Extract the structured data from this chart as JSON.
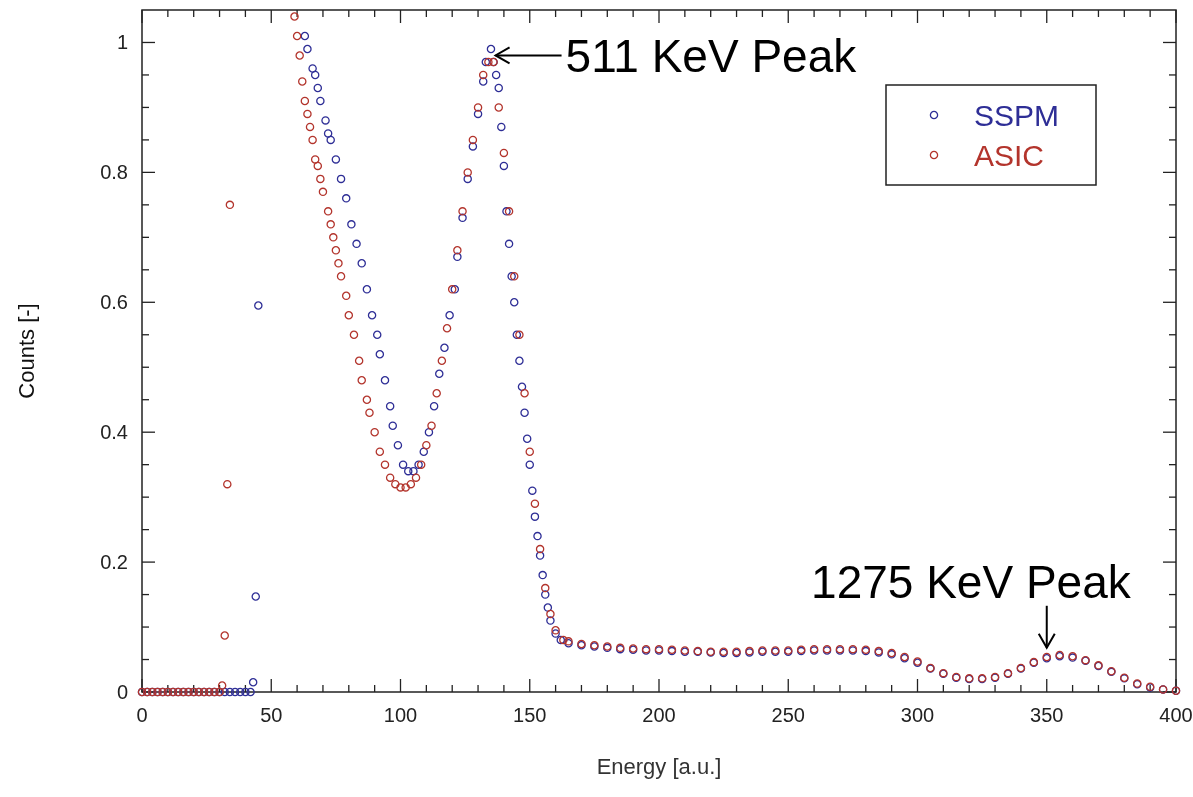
{
  "chart_data": {
    "type": "scatter",
    "xlabel": "Energy [a.u.]",
    "ylabel": "Counts [-]",
    "xlim": [
      0,
      400
    ],
    "ylim": [
      0,
      1.05
    ],
    "xticks": [
      0,
      {
        "value": 10,
        "label": null
      },
      {
        "value": 20,
        "label": null
      },
      {
        "value": 30,
        "label": null
      },
      {
        "value": 40,
        "label": null
      },
      50,
      {
        "value": 60,
        "label": null
      },
      {
        "value": 70,
        "label": null
      },
      {
        "value": 80,
        "label": null
      },
      {
        "value": 90,
        "label": null
      },
      100,
      {
        "value": 110,
        "label": null
      },
      {
        "value": 120,
        "label": null
      },
      {
        "value": 130,
        "label": null
      },
      {
        "value": 140,
        "label": null
      },
      150,
      {
        "value": 160,
        "label": null
      },
      {
        "value": 170,
        "label": null
      },
      {
        "value": 180,
        "label": null
      },
      {
        "value": 190,
        "label": null
      },
      200,
      {
        "value": 210,
        "label": null
      },
      {
        "value": 220,
        "label": null
      },
      {
        "value": 230,
        "label": null
      },
      {
        "value": 240,
        "label": null
      },
      250,
      {
        "value": 260,
        "label": null
      },
      {
        "value": 270,
        "label": null
      },
      {
        "value": 280,
        "label": null
      },
      {
        "value": 290,
        "label": null
      },
      300,
      {
        "value": 310,
        "label": null
      },
      {
        "value": 320,
        "label": null
      },
      {
        "value": 330,
        "label": null
      },
      {
        "value": 340,
        "label": null
      },
      350,
      {
        "value": 360,
        "label": null
      },
      {
        "value": 370,
        "label": null
      },
      {
        "value": 380,
        "label": null
      },
      {
        "value": 390,
        "label": null
      },
      400
    ],
    "yticks": [
      0,
      {
        "value": 0.05,
        "label": null
      },
      {
        "value": 0.1,
        "label": null
      },
      {
        "value": 0.15,
        "label": null
      },
      0.2,
      {
        "value": 0.25,
        "label": null
      },
      {
        "value": 0.3,
        "label": null
      },
      {
        "value": 0.35,
        "label": null
      },
      0.4,
      {
        "value": 0.45,
        "label": null
      },
      {
        "value": 0.5,
        "label": null
      },
      {
        "value": 0.55,
        "label": null
      },
      0.6,
      {
        "value": 0.65,
        "label": null
      },
      {
        "value": 0.7,
        "label": null
      },
      {
        "value": 0.75,
        "label": null
      },
      0.8,
      {
        "value": 0.85,
        "label": null
      },
      {
        "value": 0.9,
        "label": null
      },
      {
        "value": 0.95,
        "label": null
      },
      1
    ],
    "marker": "circle",
    "legend": "top right",
    "annotations": [
      {
        "text": "511 KeV Peak",
        "x": 136,
        "y": 0.98
      },
      {
        "text": "1275 KeV Peak",
        "x": 350,
        "y": 0.065
      }
    ],
    "series": [
      {
        "name": "SSPM",
        "color": "#2e2e96",
        "x": [
          0,
          2,
          4,
          6,
          8,
          10,
          12,
          14,
          16,
          18,
          20,
          22,
          24,
          26,
          28,
          30,
          32,
          34,
          36,
          38,
          40,
          42,
          43,
          44,
          45,
          63,
          64,
          66,
          67,
          68,
          69,
          71,
          72,
          73,
          75,
          77,
          79,
          81,
          83,
          85,
          87,
          89,
          91,
          92,
          94,
          96,
          97,
          99,
          101,
          103,
          105,
          107,
          109,
          111,
          113,
          115,
          117,
          119,
          121,
          122,
          124,
          126,
          128,
          130,
          132,
          133,
          135,
          136,
          137,
          138,
          139,
          140,
          141,
          142,
          143,
          144,
          145,
          146,
          147,
          148,
          149,
          150,
          151,
          152,
          153,
          154,
          155,
          156,
          157,
          158,
          160,
          162,
          165,
          170,
          175,
          180,
          185,
          190,
          195,
          200,
          205,
          210,
          215,
          220,
          225,
          230,
          235,
          240,
          245,
          250,
          255,
          260,
          265,
          270,
          275,
          280,
          285,
          290,
          295,
          300,
          305,
          310,
          315,
          320,
          325,
          330,
          335,
          340,
          345,
          350,
          355,
          360,
          365,
          370,
          375,
          380,
          385,
          390,
          395,
          400
        ],
        "values": [
          0,
          0,
          0,
          0,
          0,
          0,
          0,
          0,
          0,
          0,
          0,
          0,
          0,
          0,
          0,
          0,
          0,
          0,
          0,
          0,
          0,
          0,
          0.015,
          0.147,
          0.595,
          1.01,
          0.99,
          0.96,
          0.95,
          0.93,
          0.91,
          0.88,
          0.86,
          0.85,
          0.82,
          0.79,
          0.76,
          0.72,
          0.69,
          0.66,
          0.62,
          0.58,
          0.55,
          0.52,
          0.48,
          0.44,
          0.41,
          0.38,
          0.35,
          0.34,
          0.34,
          0.35,
          0.37,
          0.4,
          0.44,
          0.49,
          0.53,
          0.58,
          0.62,
          0.67,
          0.73,
          0.79,
          0.84,
          0.89,
          0.94,
          0.97,
          0.99,
          0.97,
          0.95,
          0.93,
          0.87,
          0.81,
          0.74,
          0.69,
          0.64,
          0.6,
          0.55,
          0.51,
          0.47,
          0.43,
          0.39,
          0.35,
          0.31,
          0.27,
          0.24,
          0.21,
          0.18,
          0.15,
          0.13,
          0.11,
          0.09,
          0.08,
          0.075,
          0.072,
          0.07,
          0.068,
          0.066,
          0.065,
          0.064,
          0.064,
          0.063,
          0.062,
          0.062,
          0.061,
          0.06,
          0.06,
          0.061,
          0.062,
          0.062,
          0.062,
          0.063,
          0.064,
          0.064,
          0.064,
          0.064,
          0.063,
          0.061,
          0.058,
          0.052,
          0.045,
          0.036,
          0.028,
          0.022,
          0.02,
          0.02,
          0.022,
          0.028,
          0.036,
          0.045,
          0.052,
          0.055,
          0.053,
          0.048,
          0.04,
          0.031,
          0.021,
          0.012,
          0.007,
          0.004,
          0.002
        ]
      },
      {
        "name": "ASIC",
        "color": "#b3342c",
        "x": [
          0,
          2,
          4,
          6,
          8,
          10,
          12,
          14,
          16,
          18,
          20,
          22,
          24,
          26,
          28,
          30,
          31,
          32,
          33,
          34,
          59,
          60,
          61,
          62,
          63,
          64,
          65,
          66,
          67,
          68,
          69,
          70,
          72,
          73,
          74,
          75,
          76,
          77,
          79,
          80,
          82,
          84,
          85,
          87,
          88,
          90,
          92,
          94,
          96,
          98,
          100,
          102,
          104,
          106,
          108,
          110,
          112,
          114,
          116,
          118,
          120,
          122,
          124,
          126,
          128,
          130,
          132,
          134,
          136,
          138,
          140,
          142,
          144,
          146,
          148,
          150,
          152,
          154,
          156,
          158,
          160,
          163,
          165,
          170,
          175,
          180,
          185,
          190,
          195,
          200,
          205,
          210,
          215,
          220,
          225,
          230,
          235,
          240,
          245,
          250,
          255,
          260,
          265,
          270,
          275,
          280,
          285,
          290,
          295,
          300,
          305,
          310,
          315,
          320,
          325,
          330,
          335,
          340,
          345,
          350,
          355,
          360,
          365,
          370,
          375,
          380,
          385,
          390,
          395,
          400
        ],
        "values": [
          0,
          0,
          0,
          0,
          0,
          0,
          0,
          0,
          0,
          0,
          0,
          0,
          0,
          0,
          0,
          0,
          0.01,
          0.087,
          0.32,
          0.75,
          1.04,
          1.01,
          0.98,
          0.94,
          0.91,
          0.89,
          0.87,
          0.85,
          0.82,
          0.81,
          0.79,
          0.77,
          0.74,
          0.72,
          0.7,
          0.68,
          0.66,
          0.64,
          0.61,
          0.58,
          0.55,
          0.51,
          0.48,
          0.45,
          0.43,
          0.4,
          0.37,
          0.35,
          0.33,
          0.32,
          0.315,
          0.315,
          0.32,
          0.33,
          0.35,
          0.38,
          0.41,
          0.46,
          0.51,
          0.56,
          0.62,
          0.68,
          0.74,
          0.8,
          0.85,
          0.9,
          0.95,
          0.97,
          0.97,
          0.9,
          0.83,
          0.74,
          0.64,
          0.55,
          0.46,
          0.37,
          0.29,
          0.22,
          0.16,
          0.12,
          0.095,
          0.08,
          0.078,
          0.074,
          0.072,
          0.07,
          0.068,
          0.067,
          0.066,
          0.066,
          0.065,
          0.064,
          0.063,
          0.062,
          0.062,
          0.062,
          0.063,
          0.064,
          0.064,
          0.064,
          0.065,
          0.066,
          0.066,
          0.066,
          0.066,
          0.065,
          0.063,
          0.06,
          0.054,
          0.047,
          0.037,
          0.029,
          0.023,
          0.021,
          0.021,
          0.023,
          0.029,
          0.037,
          0.046,
          0.054,
          0.057,
          0.055,
          0.049,
          0.041,
          0.032,
          0.022,
          0.013,
          0.008,
          0.004,
          0.002
        ]
      }
    ]
  }
}
